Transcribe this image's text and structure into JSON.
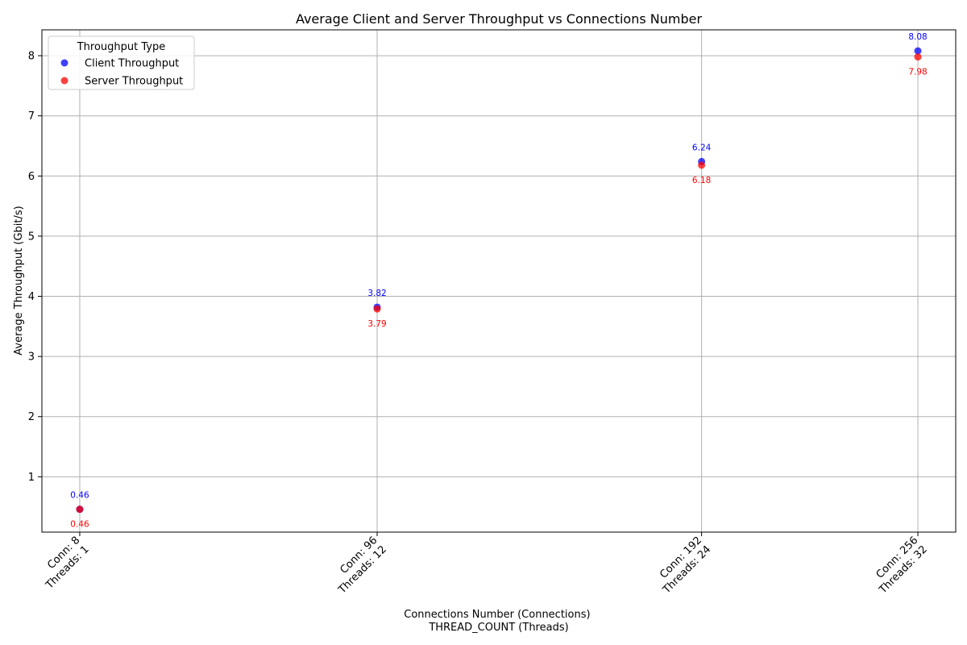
{
  "chart_data": {
    "type": "scatter",
    "title": "Average Client and Server Throughput vs Connections Number",
    "xlabel_lines": [
      "Connections Number (Connections)",
      "THREAD_COUNT (Threads)"
    ],
    "ylabel": "Average Throughput (Gbit/s)",
    "x": [
      8,
      96,
      192,
      256
    ],
    "x_tick_labels": [
      [
        "Conn: 8",
        "Threads: 1"
      ],
      [
        "Conn: 96",
        "Threads: 12"
      ],
      [
        "Conn: 192",
        "Threads: 24"
      ],
      [
        "Conn: 256",
        "Threads: 32"
      ]
    ],
    "xlim": [
      -3.2,
      267.2
    ],
    "ylim": [
      0.08,
      8.43
    ],
    "y_ticks": [
      1,
      2,
      3,
      4,
      5,
      6,
      7,
      8
    ],
    "grid": true,
    "legend": {
      "title": "Throughput Type",
      "placement": "top-left"
    },
    "series": [
      {
        "name": "Client Throughput",
        "color": "#0000ff",
        "values": [
          0.46,
          3.82,
          6.24,
          8.08
        ],
        "labels": [
          "0.46",
          "3.82",
          "6.24",
          "8.08"
        ],
        "label_position": "above"
      },
      {
        "name": "Server Throughput",
        "color": "#ff0000",
        "values": [
          0.46,
          3.79,
          6.18,
          7.98
        ],
        "labels": [
          "0.46",
          "3.79",
          "6.18",
          "7.98"
        ],
        "label_position": "below"
      }
    ]
  }
}
